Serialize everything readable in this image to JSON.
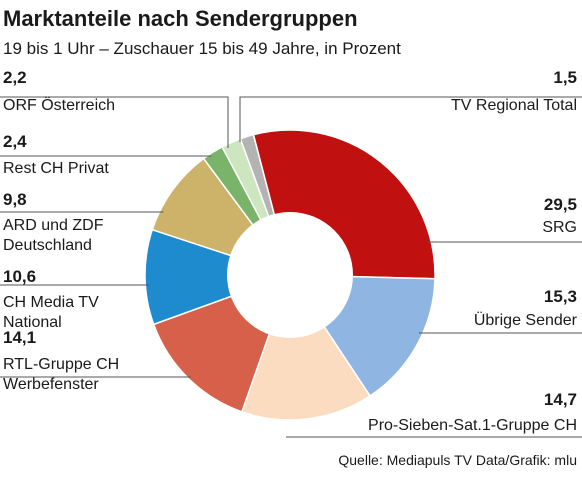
{
  "chart_data": {
    "type": "pie",
    "variant": "donut",
    "title": "Marktanteile nach Sendergruppen",
    "subtitle": "19 bis 1 Uhr – Zuschauer 15 bis 49 Jahre, in Prozent",
    "source": "Quelle: Mediapuls TV Data/Grafik: mlu",
    "slices": [
      {
        "value": 29.5,
        "value_label": "29,5",
        "label": [
          "SRG"
        ],
        "color": "#c0100f"
      },
      {
        "value": 15.3,
        "value_label": "15,3",
        "label": [
          "Übrige Sender"
        ],
        "color": "#8fb5e3"
      },
      {
        "value": 14.7,
        "value_label": "14,7",
        "label": [
          "Pro-Sieben-Sat.1-Gruppe CH"
        ],
        "color": "#fbdcc0"
      },
      {
        "value": 14.1,
        "value_label": "14,1",
        "label": [
          "RTL-Gruppe CH",
          "Werbefenster"
        ],
        "color": "#d6604a"
      },
      {
        "value": 10.6,
        "value_label": "10,6",
        "label": [
          "CH Media TV",
          "National"
        ],
        "color": "#1e8bcf"
      },
      {
        "value": 9.8,
        "value_label": "9,8",
        "label": [
          "ARD und ZDF",
          "Deutschland"
        ],
        "color": "#cdb26a"
      },
      {
        "value": 2.4,
        "value_label": "2,4",
        "label": [
          "Rest CH Privat"
        ],
        "color": "#7ab46a"
      },
      {
        "value": 2.2,
        "value_label": "2,2",
        "label": [
          "ORF Österreich"
        ],
        "color": "#cde6c0"
      },
      {
        "value": 1.5,
        "value_label": "1,5",
        "label": [
          "TV Regional Total"
        ],
        "color": "#b3b3b3"
      }
    ]
  }
}
